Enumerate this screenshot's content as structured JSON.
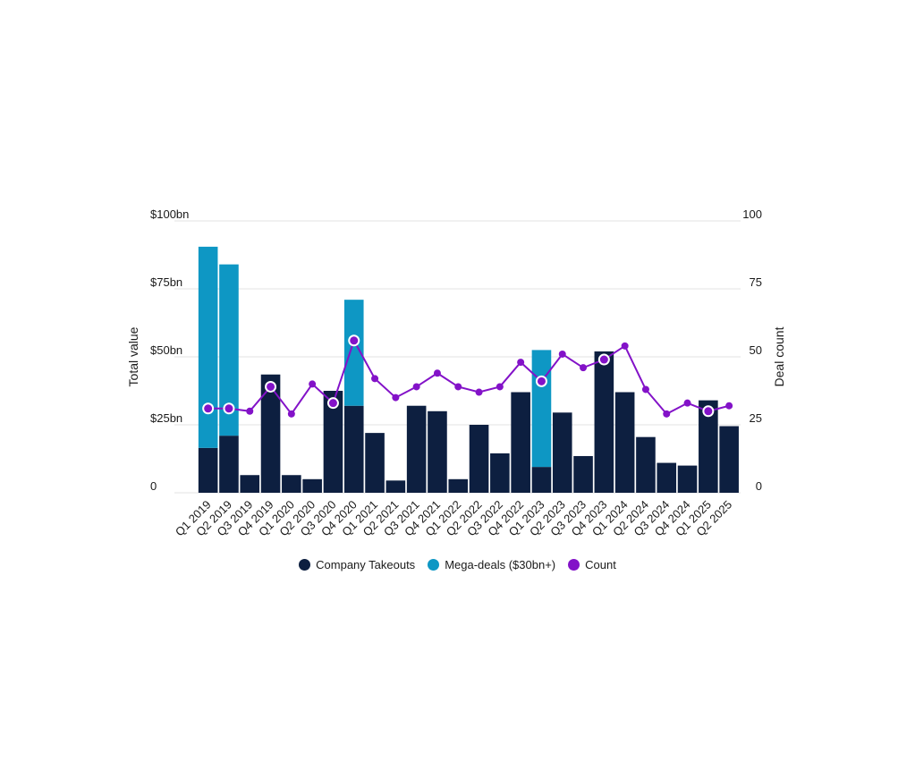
{
  "chart_data": {
    "type": "bar",
    "categories": [
      "Q1 2019",
      "Q2 2019",
      "Q3 2019",
      "Q4 2019",
      "Q1 2020",
      "Q2 2020",
      "Q3 2020",
      "Q4 2020",
      "Q1 2021",
      "Q2 2021",
      "Q3 2021",
      "Q4 2021",
      "Q1 2022",
      "Q2 2022",
      "Q3 2022",
      "Q4 2022",
      "Q1 2023",
      "Q2 2023",
      "Q3 2023",
      "Q4 2023",
      "Q1 2024",
      "Q2 2024",
      "Q3 2024",
      "Q4 2024",
      "Q1 2025",
      "Q2 2025"
    ],
    "series": [
      {
        "name": "Company Takeouts",
        "kind": "bar",
        "axis": "left",
        "color": "#0d1f40",
        "values": [
          16.5,
          21,
          6.5,
          43.5,
          6.5,
          5,
          37.5,
          32,
          22,
          4.5,
          32,
          30,
          5,
          25,
          14.5,
          37,
          9.5,
          29.5,
          13.5,
          52,
          37,
          20.5,
          11,
          10,
          34,
          24.5
        ]
      },
      {
        "name": "Mega-deals ($30bn+)",
        "kind": "bar",
        "stacked": true,
        "axis": "left",
        "color": "#0e97c4",
        "values": [
          74,
          63,
          0,
          0,
          0,
          0,
          0,
          39,
          0,
          0,
          0,
          0,
          0,
          0,
          0,
          0,
          43,
          0,
          0,
          0,
          0,
          0,
          0,
          0,
          0,
          0
        ]
      },
      {
        "name": "Count",
        "kind": "line",
        "axis": "right",
        "color": "#8312c8",
        "values": [
          31,
          31,
          30,
          39,
          29,
          40,
          33,
          56,
          42,
          35,
          39,
          44,
          39,
          37,
          39,
          48,
          41,
          51,
          46,
          49,
          54,
          38,
          29,
          33,
          30,
          32
        ],
        "marked": [
          0,
          1,
          3,
          6,
          7,
          16,
          19,
          24
        ]
      }
    ],
    "ylabel": "Total value",
    "y2label": "Deal count",
    "ylim": [
      0,
      100
    ],
    "y2lim": [
      0,
      100
    ],
    "yticks": [
      "0",
      "$25bn",
      "$50bn",
      "$75bn",
      "$100bn"
    ],
    "y2ticks": [
      "0",
      "25",
      "50",
      "75",
      "100"
    ],
    "grid": true,
    "legend_position": "bottom-center"
  }
}
